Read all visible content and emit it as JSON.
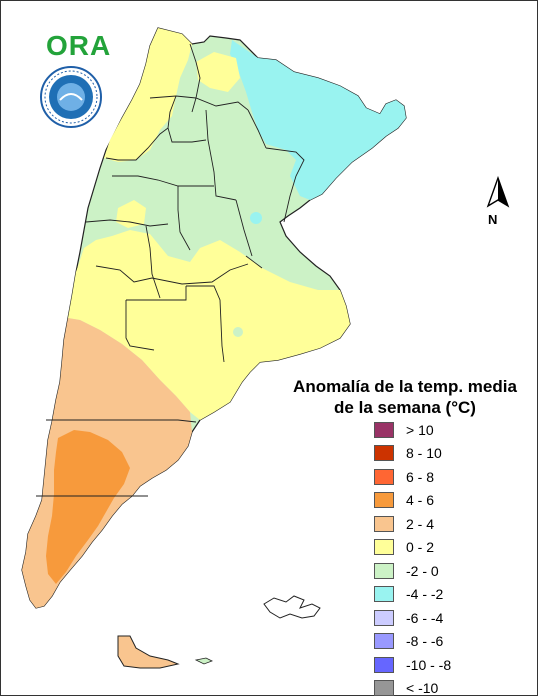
{
  "header": {
    "logo_word": "ORA",
    "seal_text": "SERVICIO METEOROLÓGICO NACIONAL · ARGENTINA"
  },
  "legend": {
    "title_line1": "Anomalía de la temp. media",
    "title_line2": "de la semana (°C)",
    "items": [
      {
        "label": "> 10",
        "color": "#993366"
      },
      {
        "label": "8 - 10",
        "color": "#cc3300"
      },
      {
        "label": "6 - 8",
        "color": "#ff6633"
      },
      {
        "label": "4 - 6",
        "color": "#f79a3c"
      },
      {
        "label": "2 - 4",
        "color": "#f9c58f"
      },
      {
        "label": "0 - 2",
        "color": "#ffff99"
      },
      {
        "label": "-2 - 0",
        "color": "#ccf2c6"
      },
      {
        "label": "-4 - -2",
        "color": "#99f3f0"
      },
      {
        "label": "-6 - -4",
        "color": "#ccccff"
      },
      {
        "label": "-8 - -6",
        "color": "#9999ff"
      },
      {
        "label": "-10 - -8",
        "color": "#6666ff"
      },
      {
        "label": "< -10",
        "color": "#969696"
      }
    ]
  },
  "north_arrow": {
    "label": "N"
  }
}
